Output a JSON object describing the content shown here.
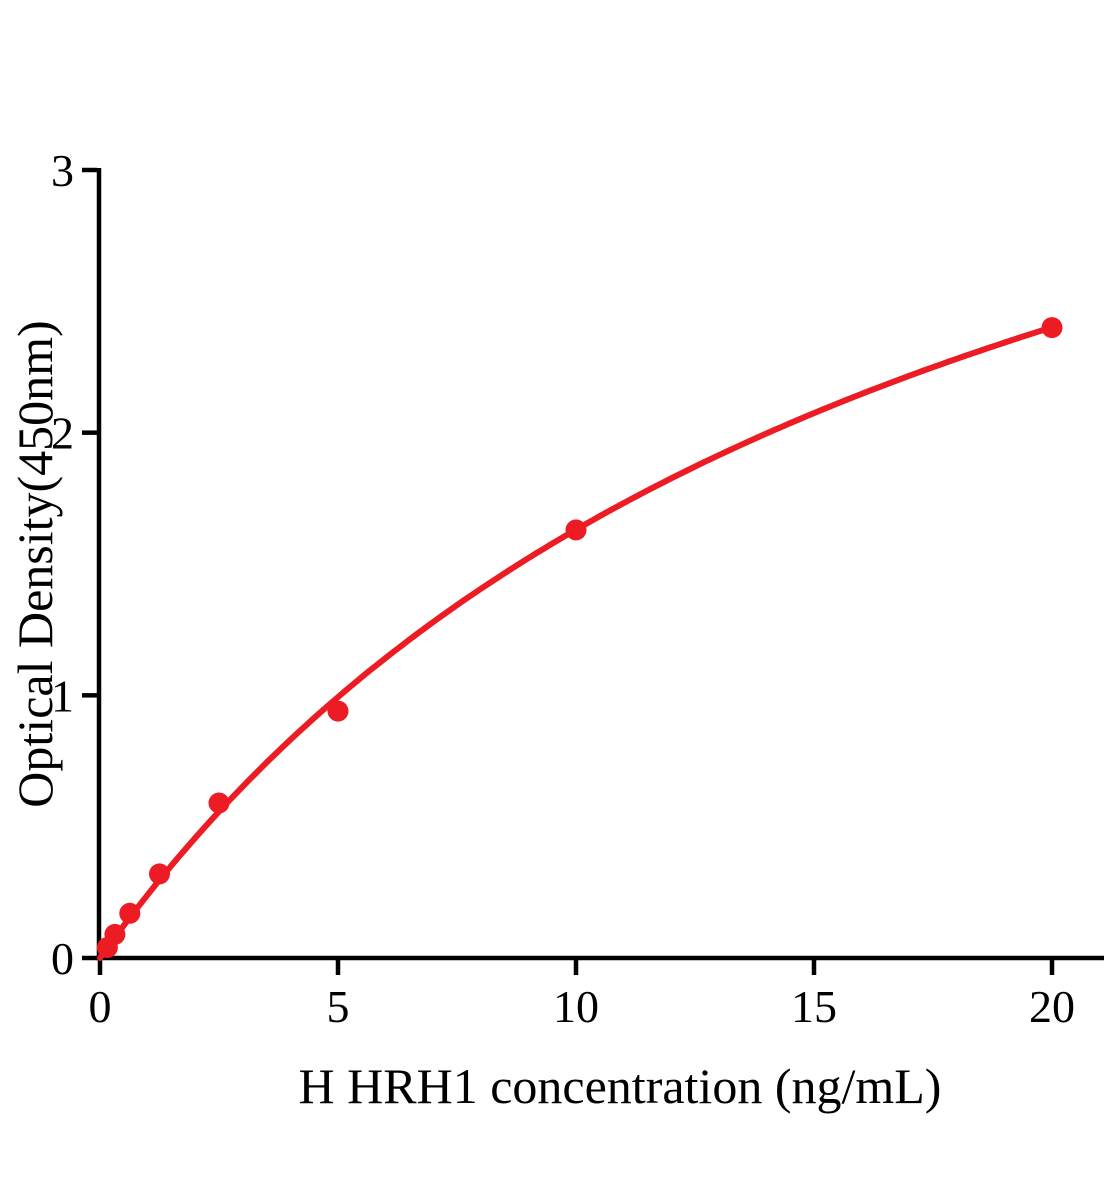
{
  "chart_data": {
    "type": "scatter",
    "title": "",
    "xlabel": "H HRH1 concentration (ng/mL)",
    "ylabel": "Optical Density(450nm)",
    "xlim": [
      0,
      20
    ],
    "ylim": [
      0,
      3
    ],
    "x_ticks": [
      0,
      5,
      10,
      15,
      20
    ],
    "y_ticks": [
      0,
      1,
      2,
      3
    ],
    "grid": false,
    "legend": null,
    "points": [
      {
        "x": 0.156,
        "y": 0.04
      },
      {
        "x": 0.313,
        "y": 0.09
      },
      {
        "x": 0.625,
        "y": 0.17
      },
      {
        "x": 1.25,
        "y": 0.32
      },
      {
        "x": 2.5,
        "y": 0.59
      },
      {
        "x": 5,
        "y": 0.94
      },
      {
        "x": 10,
        "y": 1.63
      },
      {
        "x": 20,
        "y": 2.4
      }
    ],
    "curve_fit": {
      "model": "saturation",
      "formula": "y = a*x/(b+x)",
      "a": 4.55,
      "b": 17.9,
      "x_range": [
        0,
        20
      ]
    },
    "colors": {
      "series": "#ED1C24",
      "axis": "#000000",
      "text": "#000000",
      "background": "#FFFFFF"
    }
  }
}
